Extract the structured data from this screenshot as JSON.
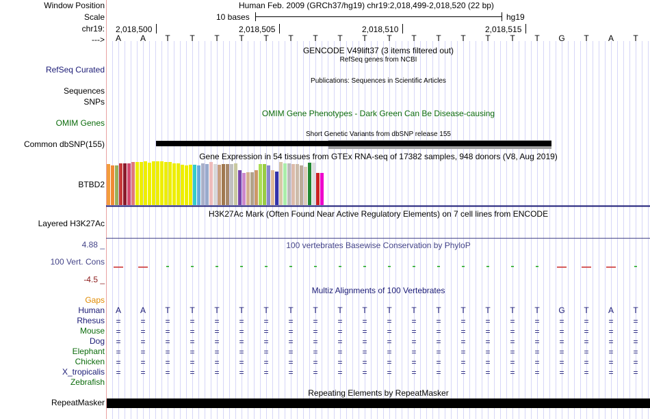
{
  "colors": {
    "label_dark": "#000000",
    "label_navy": "#1a1a75",
    "label_green": "#0b6b0b",
    "gaps_orange": "#e08a00",
    "phylop_blue": "#444488",
    "phylop_neg": "#8b1a1a",
    "grid": "#b4b4f0",
    "left_border": "#e8a0a0"
  },
  "window_position": {
    "label": "Window Position",
    "text": "Human Feb. 2009 (GRCh37/hg19)   chr19:2,018,499-2,018,520 (22 bp)"
  },
  "scale": {
    "label": "Scale",
    "scale_text": "10 bases",
    "assembly": "hg19"
  },
  "ruler": {
    "label": "chr19:",
    "ticks": [
      "2,018,500",
      "2,018,505",
      "2,018,510",
      "2,018,515"
    ]
  },
  "sequence": {
    "label": "--->",
    "bases": [
      "A",
      "A",
      "T",
      "T",
      "T",
      "T",
      "T",
      "T",
      "T",
      "T",
      "T",
      "T",
      "T",
      "T",
      "T",
      "T",
      "T",
      "T",
      "G",
      "T",
      "A",
      "T"
    ]
  },
  "tracks": {
    "gencode": {
      "title": "GENCODE V49lift37 (3 items filtered out)"
    },
    "refseq": {
      "label": "RefSeq Curated",
      "title": "RefSeq genes from NCBI"
    },
    "sequences": {
      "label": "Sequences",
      "title": "Publications: Sequences in Scientific Articles"
    },
    "snps": {
      "label": "SNPs"
    },
    "omim": {
      "label": "OMIM Genes",
      "title": "OMIM Gene Phenotypes - Dark Green Can Be Disease-causing"
    },
    "dbsnp": {
      "label": "Common dbSNP(155)",
      "title": "Short Genetic Variants from dbSNP release 155"
    },
    "gtex": {
      "label": "BTBD2",
      "title": "Gene Expression in 54 tissues from GTEx RNA-seq of 17382 samples, 948 donors (V8, Aug 2019)",
      "bars": [
        {
          "v": 0.93,
          "c": "#f39c3c"
        },
        {
          "v": 0.9,
          "c": "#f08a35"
        },
        {
          "v": 0.9,
          "c": "#9bb05a"
        },
        {
          "v": 0.95,
          "c": "#c83a3a"
        },
        {
          "v": 0.96,
          "c": "#8b1a2b"
        },
        {
          "v": 0.96,
          "c": "#d2486e"
        },
        {
          "v": 0.98,
          "c": "#e07a7a"
        },
        {
          "v": 0.98,
          "c": "#eeee00"
        },
        {
          "v": 0.99,
          "c": "#eeee00"
        },
        {
          "v": 1.0,
          "c": "#eeee00"
        },
        {
          "v": 0.97,
          "c": "#eeee00"
        },
        {
          "v": 1.0,
          "c": "#eeee00"
        },
        {
          "v": 1.0,
          "c": "#eeee00"
        },
        {
          "v": 1.0,
          "c": "#eeee00"
        },
        {
          "v": 0.99,
          "c": "#eeee00"
        },
        {
          "v": 0.99,
          "c": "#eeee00"
        },
        {
          "v": 0.96,
          "c": "#eeee00"
        },
        {
          "v": 0.95,
          "c": "#eeee00"
        },
        {
          "v": 0.92,
          "c": "#eeee00"
        },
        {
          "v": 0.91,
          "c": "#eeee00"
        },
        {
          "v": 0.92,
          "c": "#eeee00"
        },
        {
          "v": 0.92,
          "c": "#33cccc"
        },
        {
          "v": 0.91,
          "c": "#66aadd"
        },
        {
          "v": 0.96,
          "c": "#aab0c8"
        },
        {
          "v": 0.94,
          "c": "#99aacc"
        },
        {
          "v": 0.98,
          "c": "#eebbbb"
        },
        {
          "v": 0.93,
          "c": "#d8d8d8"
        },
        {
          "v": 0.92,
          "c": "#c8a080"
        },
        {
          "v": 0.93,
          "c": "#a07850"
        },
        {
          "v": 0.93,
          "c": "#a8886a"
        },
        {
          "v": 0.94,
          "c": "#c0c0c0"
        },
        {
          "v": 0.96,
          "c": "#c8c8a0"
        },
        {
          "v": 0.8,
          "c": "#7744aa"
        },
        {
          "v": 0.74,
          "c": "#cc88cc"
        },
        {
          "v": 0.75,
          "c": "#d4b090"
        },
        {
          "v": 0.75,
          "c": "#b2a38a"
        },
        {
          "v": 0.79,
          "c": "#cc9966"
        },
        {
          "v": 0.94,
          "c": "#aadd55"
        },
        {
          "v": 0.93,
          "c": "#99cc44"
        },
        {
          "v": 0.91,
          "c": "#8888cc"
        },
        {
          "v": 0.79,
          "c": "#ddbb99"
        },
        {
          "v": 0.77,
          "c": "#3333aa"
        },
        {
          "v": 0.98,
          "c": "#d8c8a8"
        },
        {
          "v": 0.96,
          "c": "#aaeeaa"
        },
        {
          "v": 0.96,
          "c": "#bbbbbb"
        },
        {
          "v": 0.93,
          "c": "#ddbbaa"
        },
        {
          "v": 0.93,
          "c": "#ccbbaa"
        },
        {
          "v": 0.9,
          "c": "#bbaa99"
        },
        {
          "v": 0.87,
          "c": "#ddccbb"
        },
        {
          "v": 0.97,
          "c": "#228833"
        },
        {
          "v": 0.97,
          "c": "#dddddd"
        },
        {
          "v": 0.74,
          "c": "#cc2222"
        },
        {
          "v": 0.74,
          "c": "#ee00cc"
        }
      ]
    },
    "h3k27ac": {
      "label": "Layered H3K27Ac",
      "title": "H3K27Ac Mark (Often Found Near Active Regulatory Elements) on 7 cell lines from ENCODE"
    },
    "conservation": {
      "label": "100 Vert. Cons",
      "title": "100 vertebrates Basewise Conservation by PhyloP",
      "max": "4.88 _",
      "min": "-4.5 _",
      "scores": [
        -1.2,
        -1.0,
        1.5,
        1.1,
        1.1,
        1.3,
        1.2,
        1.2,
        1.1,
        1.2,
        1.0,
        1.0,
        1.1,
        1.2,
        1.1,
        1.0,
        1.1,
        0.9,
        -0.6,
        -1.1,
        -0.4,
        0.6
      ]
    },
    "multiz": {
      "title": "Multiz Alignments of 100 Vertebrates",
      "gaps_label": "Gaps",
      "species": [
        {
          "name": "Human",
          "row": "human"
        },
        {
          "name": "Rhesus",
          "row": "eq"
        },
        {
          "name": "Mouse",
          "row": "eq"
        },
        {
          "name": "Dog",
          "row": "eq"
        },
        {
          "name": "Elephant",
          "row": "eq"
        },
        {
          "name": "Chicken",
          "row": "eq"
        },
        {
          "name": "X_tropicalis",
          "row": "eq"
        },
        {
          "name": "Zebrafish",
          "row": "none"
        }
      ],
      "match_symbol": "="
    },
    "repeatmasker": {
      "label": "RepeatMasker",
      "title": "Repeating Elements by RepeatMasker"
    }
  }
}
